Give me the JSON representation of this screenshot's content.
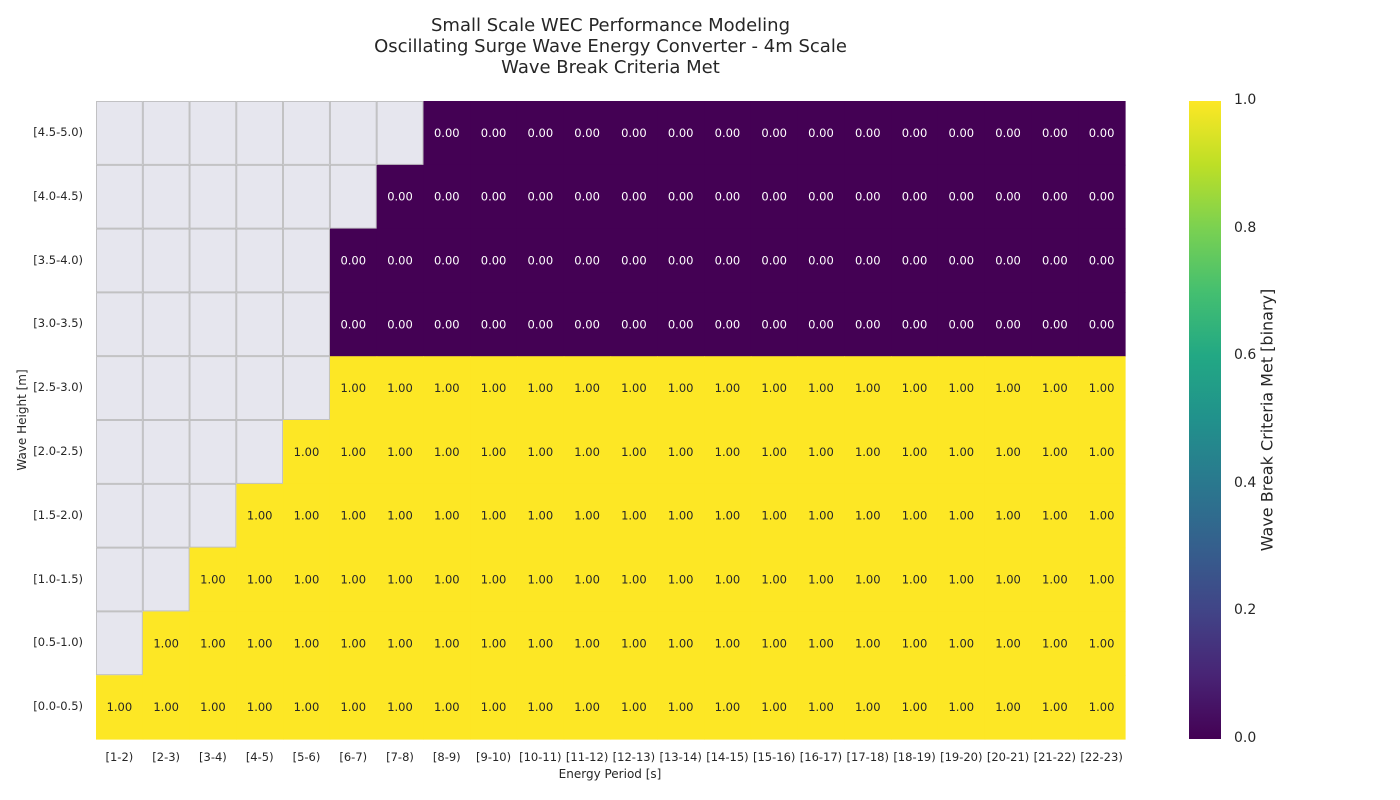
{
  "chart_data": {
    "type": "heatmap",
    "title": [
      "Small Scale WEC Performance Modeling",
      "Oscillating Surge Wave Energy Converter - 4m Scale",
      "Wave Break Criteria Met"
    ],
    "xlabel": "Energy Period [s]",
    "ylabel": "Wave Height [m]",
    "x_categories": [
      "[1-2)",
      "[2-3)",
      "[3-4)",
      "[4-5)",
      "[5-6)",
      "[6-7)",
      "[7-8)",
      "[8-9)",
      "[9-10)",
      "[10-11)",
      "[11-12)",
      "[12-13)",
      "[13-14)",
      "[14-15)",
      "[15-16)",
      "[16-17)",
      "[17-18)",
      "[18-19)",
      "[19-20)",
      "[20-21)",
      "[21-22)",
      "[22-23)"
    ],
    "y_categories": [
      "[4.5-5.0)",
      "[4.0-4.5)",
      "[3.5-4.0)",
      "[3.0-3.5)",
      "[2.5-3.0)",
      "[2.0-2.5)",
      "[1.5-2.0)",
      "[1.0-1.5)",
      "[0.5-1.0)",
      "[0.0-0.5)"
    ],
    "values": [
      [
        null,
        null,
        null,
        null,
        null,
        null,
        null,
        0,
        0,
        0,
        0,
        0,
        0,
        0,
        0,
        0,
        0,
        0,
        0,
        0,
        0,
        0
      ],
      [
        null,
        null,
        null,
        null,
        null,
        null,
        0,
        0,
        0,
        0,
        0,
        0,
        0,
        0,
        0,
        0,
        0,
        0,
        0,
        0,
        0,
        0
      ],
      [
        null,
        null,
        null,
        null,
        null,
        0,
        0,
        0,
        0,
        0,
        0,
        0,
        0,
        0,
        0,
        0,
        0,
        0,
        0,
        0,
        0,
        0
      ],
      [
        null,
        null,
        null,
        null,
        null,
        0,
        0,
        0,
        0,
        0,
        0,
        0,
        0,
        0,
        0,
        0,
        0,
        0,
        0,
        0,
        0,
        0
      ],
      [
        null,
        null,
        null,
        null,
        null,
        1,
        1,
        1,
        1,
        1,
        1,
        1,
        1,
        1,
        1,
        1,
        1,
        1,
        1,
        1,
        1,
        1
      ],
      [
        null,
        null,
        null,
        null,
        1,
        1,
        1,
        1,
        1,
        1,
        1,
        1,
        1,
        1,
        1,
        1,
        1,
        1,
        1,
        1,
        1,
        1
      ],
      [
        null,
        null,
        null,
        1,
        1,
        1,
        1,
        1,
        1,
        1,
        1,
        1,
        1,
        1,
        1,
        1,
        1,
        1,
        1,
        1,
        1,
        1
      ],
      [
        null,
        null,
        1,
        1,
        1,
        1,
        1,
        1,
        1,
        1,
        1,
        1,
        1,
        1,
        1,
        1,
        1,
        1,
        1,
        1,
        1,
        1
      ],
      [
        null,
        1,
        1,
        1,
        1,
        1,
        1,
        1,
        1,
        1,
        1,
        1,
        1,
        1,
        1,
        1,
        1,
        1,
        1,
        1,
        1,
        1
      ],
      [
        1,
        1,
        1,
        1,
        1,
        1,
        1,
        1,
        1,
        1,
        1,
        1,
        1,
        1,
        1,
        1,
        1,
        1,
        1,
        1,
        1,
        1
      ]
    ],
    "value_format_decimals": 2,
    "colormap": "viridis",
    "vmin": 0.0,
    "vmax": 1.0,
    "colors": {
      "low": "#440154",
      "high": "#fde725",
      "missing": "#e6e6ee",
      "grid": "#b8b8b8"
    },
    "colorbar": {
      "label": "Wave Break Criteria Met [binary]",
      "ticks": [
        0.0,
        0.2,
        0.4,
        0.6,
        0.8,
        1.0
      ],
      "tick_labels": [
        "0.0",
        "0.2",
        "0.4",
        "0.6",
        "0.8",
        "1.0"
      ]
    }
  }
}
